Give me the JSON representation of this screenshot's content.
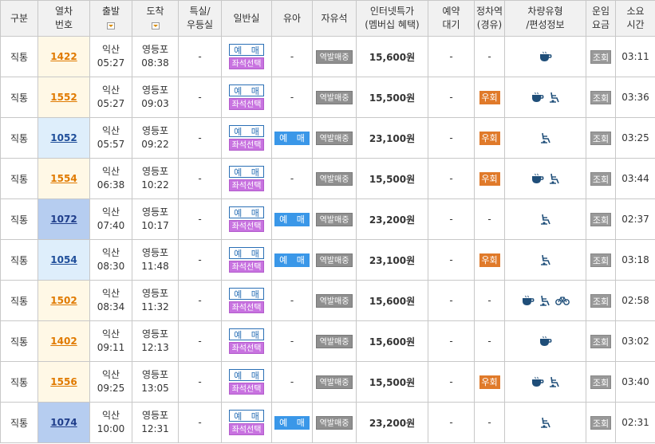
{
  "header": {
    "type": "구분",
    "train_no": [
      "열차",
      "번호"
    ],
    "depart": "출발",
    "arrive": "도착",
    "special": [
      "특실/",
      "우등실"
    ],
    "general": "일반실",
    "baby": "유아",
    "free_seat": "자유석",
    "internet": [
      "인터넷특가",
      "(멤버십 혜택)"
    ],
    "waitlist": [
      "예약",
      "대기"
    ],
    "stop": [
      "정차역",
      "(경유)"
    ],
    "car_type": [
      "차량유형",
      "/편성정보"
    ],
    "fare": [
      "운임",
      "요금"
    ],
    "duration": [
      "소요",
      "시간"
    ]
  },
  "labels": {
    "reserve": "예 매",
    "seat_select": "좌석선택",
    "baby_reserve": "예 매",
    "station_sale": "역발매중",
    "detour": "우회",
    "fare_view": "조회",
    "dash": "-"
  },
  "colors": {
    "ktx_orange": "#e07a00",
    "nuri_blue": "#1f4e9a",
    "seat_purple": "#c873e0",
    "baby_blue": "#3a97e8",
    "station_gray": "#8f8f8f",
    "detour_orange": "#e07a2a"
  },
  "rows": [
    {
      "type": "직통",
      "no": "1422",
      "cls": "tr-ktx",
      "from": "익산",
      "dep": "05:27",
      "to": "영등포",
      "arr": "08:38",
      "special": "-",
      "baby": "-",
      "price": "15,600원",
      "wait": "-",
      "stop": "-",
      "icons": [
        "cafe-icon"
      ],
      "duration": "03:11"
    },
    {
      "type": "직통",
      "no": "1552",
      "cls": "tr-ktx",
      "from": "익산",
      "dep": "05:27",
      "to": "영등포",
      "arr": "09:03",
      "special": "-",
      "baby": "-",
      "price": "15,500원",
      "wait": "-",
      "stop": "우회",
      "icons": [
        "cafe-icon",
        "wheelchair-icon"
      ],
      "duration": "03:36"
    },
    {
      "type": "직통",
      "no": "1052",
      "cls": "tr-nuri",
      "from": "익산",
      "dep": "05:57",
      "to": "영등포",
      "arr": "09:22",
      "special": "-",
      "baby": "예 매",
      "price": "23,100원",
      "wait": "-",
      "stop": "우회",
      "icons": [
        "wheelchair-icon"
      ],
      "duration": "03:25"
    },
    {
      "type": "직통",
      "no": "1554",
      "cls": "tr-ktx",
      "from": "익산",
      "dep": "06:38",
      "to": "영등포",
      "arr": "10:22",
      "special": "-",
      "baby": "-",
      "price": "15,500원",
      "wait": "-",
      "stop": "우회",
      "icons": [
        "cafe-icon",
        "wheelchair-icon"
      ],
      "duration": "03:44"
    },
    {
      "type": "직통",
      "no": "1072",
      "cls": "tr-nuri2",
      "from": "익산",
      "dep": "07:40",
      "to": "영등포",
      "arr": "10:17",
      "special": "-",
      "baby": "예 매",
      "price": "23,200원",
      "wait": "-",
      "stop": "-",
      "icons": [
        "wheelchair-icon"
      ],
      "duration": "02:37"
    },
    {
      "type": "직통",
      "no": "1054",
      "cls": "tr-muni",
      "from": "익산",
      "dep": "08:30",
      "to": "영등포",
      "arr": "11:48",
      "special": "-",
      "baby": "예 매",
      "price": "23,100원",
      "wait": "-",
      "stop": "우회",
      "icons": [
        "wheelchair-icon"
      ],
      "duration": "03:18"
    },
    {
      "type": "직통",
      "no": "1502",
      "cls": "tr-ktx",
      "from": "익산",
      "dep": "08:34",
      "to": "영등포",
      "arr": "11:32",
      "special": "-",
      "baby": "-",
      "price": "15,600원",
      "wait": "-",
      "stop": "-",
      "icons": [
        "cafe-icon",
        "wheelchair-icon",
        "bicycle-icon"
      ],
      "duration": "02:58"
    },
    {
      "type": "직통",
      "no": "1402",
      "cls": "tr-ktx",
      "from": "익산",
      "dep": "09:11",
      "to": "영등포",
      "arr": "12:13",
      "special": "-",
      "baby": "-",
      "price": "15,600원",
      "wait": "-",
      "stop": "-",
      "icons": [
        "cafe-icon"
      ],
      "duration": "03:02"
    },
    {
      "type": "직통",
      "no": "1556",
      "cls": "tr-ktx",
      "from": "익산",
      "dep": "09:25",
      "to": "영등포",
      "arr": "13:05",
      "special": "-",
      "baby": "-",
      "price": "15,500원",
      "wait": "-",
      "stop": "우회",
      "icons": [
        "cafe-icon",
        "wheelchair-icon"
      ],
      "duration": "03:40"
    },
    {
      "type": "직통",
      "no": "1074",
      "cls": "tr-nuri2",
      "from": "익산",
      "dep": "10:00",
      "to": "영등포",
      "arr": "12:31",
      "special": "-",
      "baby": "예 매",
      "price": "23,200원",
      "wait": "-",
      "stop": "-",
      "icons": [
        "wheelchair-icon"
      ],
      "duration": "02:31"
    }
  ]
}
